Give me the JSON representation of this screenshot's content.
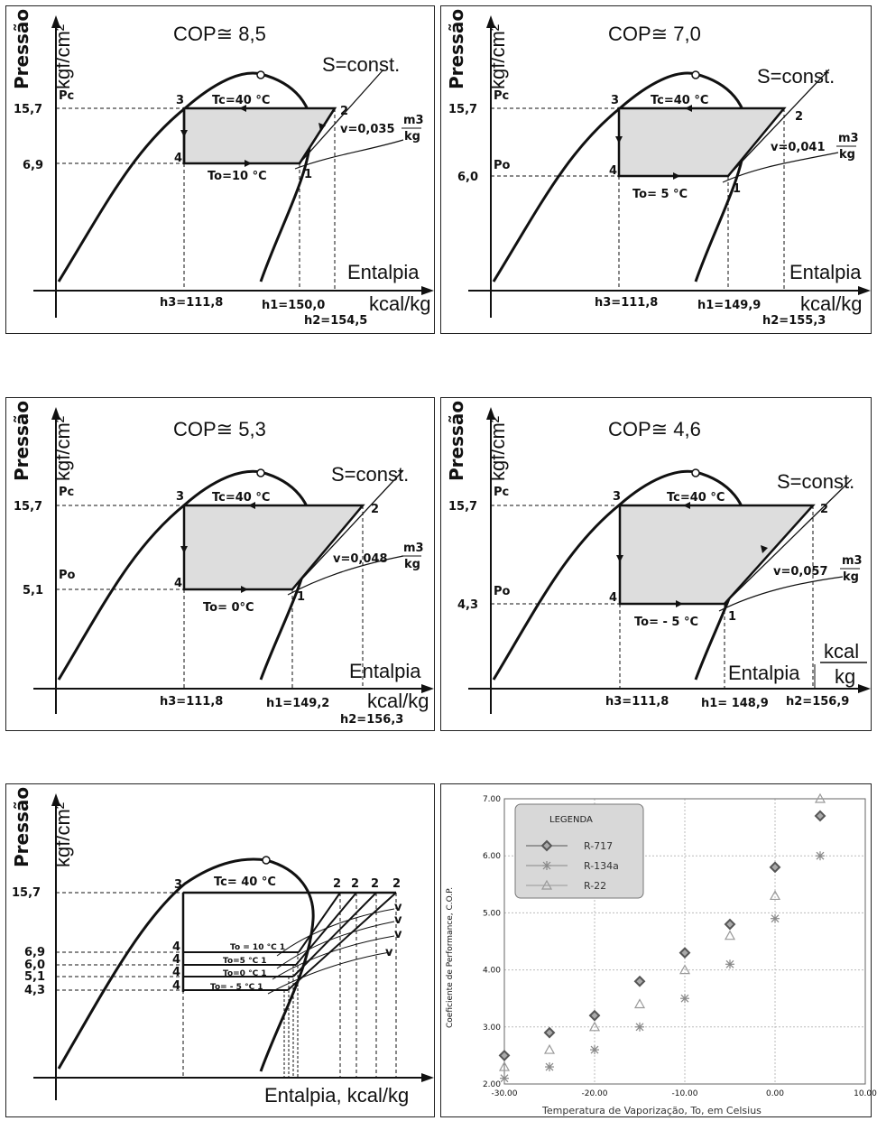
{
  "common": {
    "ylabel_pressao": "Pressão",
    "ylabel_unit": "kgf/cm²",
    "entalpia": "Entalpia",
    "xunit": "kcal/kg",
    "s_const": "S=const.",
    "tc": "Tc=40 °C",
    "pc": "Pc",
    "po": "Po",
    "pc_val": "15,7",
    "h3": "h3=111,8",
    "p3": "3",
    "p4": "4",
    "p1": "1",
    "p2": "2"
  },
  "panels": [
    {
      "cop": "COP≅ 8,5",
      "po_val": "6,9",
      "to": "To=10 °C",
      "v": "v=0,035",
      "vunit_num": "m3",
      "vunit_den": "kg",
      "h1": "h1=150,0",
      "h2": "h2=154,5"
    },
    {
      "cop": "COP≅ 7,0",
      "po_val": "6,0",
      "to": "To= 5 °C",
      "v": "v=0,041",
      "vunit_num": "m3",
      "vunit_den": "kg",
      "h1": "h1=149,9",
      "h2": "h2=155,3"
    },
    {
      "cop": "COP≅ 5,3",
      "po_val": "5,1",
      "to": "To= 0°C",
      "v": "v=0,048",
      "vunit_num": "m3",
      "vunit_den": "kg",
      "h1": "h1=149,2",
      "h2": "h2=156,3"
    },
    {
      "cop": "COP≅ 4,6",
      "po_val": "4,3",
      "to": "To= - 5 °C",
      "v": "v=0,057",
      "vunit_num": "m3",
      "vunit_den": "kg",
      "h1": "h1= 148,9",
      "h2": "h2=156,9",
      "unit_num": "kcal",
      "unit_den": "kg"
    }
  ],
  "combined": {
    "ylabel_pressao": "Pressão",
    "ylabel_unit": "kgf/cm²",
    "tc": "Tc= 40 °C",
    "xlabel": "Entalpia,  kcal/kg",
    "pressures": [
      "15,7",
      "6,9",
      "6,0",
      "5,1",
      "4,3"
    ],
    "to_labels": [
      "To = 10 °C 1",
      "To=5 °C 1",
      "To=0 °C 1",
      "To= - 5 °C 1"
    ],
    "point3": "3",
    "point4": "4",
    "point2": "2",
    "pointv": "v"
  },
  "chart_data": {
    "type": "scatter",
    "title": "",
    "xlabel": "Temperatura de Vaporização,  To, em  Celsius",
    "ylabel": "Coeficiente de Performance, C.O.P.",
    "xlim": [
      -30,
      10
    ],
    "ylim": [
      2,
      7
    ],
    "xticks": [
      "-30.00",
      "-20.00",
      "-10.00",
      "0.00",
      "10.00"
    ],
    "yticks": [
      "2.00",
      "3.00",
      "4.00",
      "5.00",
      "6.00",
      "7.00"
    ],
    "legend_title": "LEGENDA",
    "legend_position": "top-left",
    "series": [
      {
        "name": "R-717",
        "marker": "diamond",
        "color": "#555555",
        "x": [
          -30,
          -25,
          -20,
          -15,
          -10,
          -5,
          0,
          5
        ],
        "y": [
          2.5,
          2.9,
          3.2,
          3.8,
          4.3,
          4.8,
          5.8,
          6.7
        ]
      },
      {
        "name": "R-134a",
        "marker": "star",
        "color": "#888888",
        "x": [
          -30,
          -25,
          -20,
          -15,
          -10,
          -5,
          0,
          5
        ],
        "y": [
          2.1,
          2.3,
          2.6,
          3.0,
          3.5,
          4.1,
          4.9,
          6.0
        ]
      },
      {
        "name": "R-22",
        "marker": "triangle",
        "color": "#999999",
        "x": [
          -30,
          -25,
          -20,
          -15,
          -10,
          -5,
          0,
          5
        ],
        "y": [
          2.3,
          2.6,
          3.0,
          3.4,
          4.0,
          4.6,
          5.3,
          7.0
        ]
      }
    ]
  }
}
